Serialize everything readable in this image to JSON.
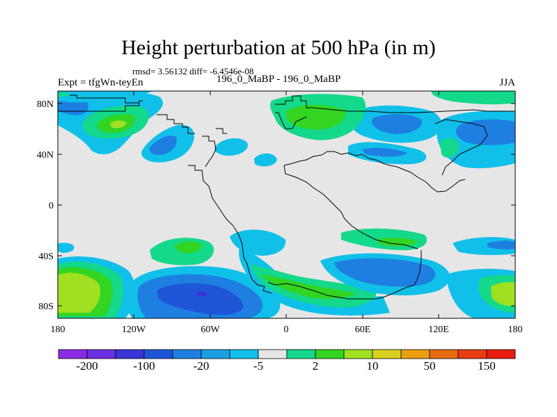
{
  "title": "Height perturbation at 500 hPa (in m)",
  "stats": "rmsd= 3.56132 diff= -6.4546e-08",
  "experiment_label": "Expt = tfgWn-teyEn",
  "comparison_label": "196_0_MaBP - 196_0_MaBP",
  "season": "JJA",
  "map": {
    "projection": "cylindrical equidistant",
    "lon_range": [
      -180,
      180
    ],
    "lat_range": [
      -90,
      90
    ],
    "field": "500 hPa geopotential height difference",
    "background_color": "#e6e6e6",
    "coastline_color": "#000000"
  },
  "axes": {
    "lat_labels": [
      "80N",
      "40N",
      "0",
      "40S",
      "80S"
    ],
    "lon_labels": [
      "180",
      "120W",
      "60W",
      "0",
      "60E",
      "120E",
      "180"
    ]
  },
  "colorbar": {
    "colors": [
      "#8a2be2",
      "#6a2fe0",
      "#3a35d8",
      "#1f56d8",
      "#1e7fe0",
      "#1aa0e0",
      "#10c0e8",
      "#e6e6e6",
      "#14d88a",
      "#33d422",
      "#a0e020",
      "#d8d020",
      "#e8a010",
      "#e86a10",
      "#e83c10",
      "#e81c10"
    ],
    "labels": [
      "-200",
      "-100",
      "-20",
      "-5",
      "2",
      "10",
      "50",
      "150"
    ]
  }
}
